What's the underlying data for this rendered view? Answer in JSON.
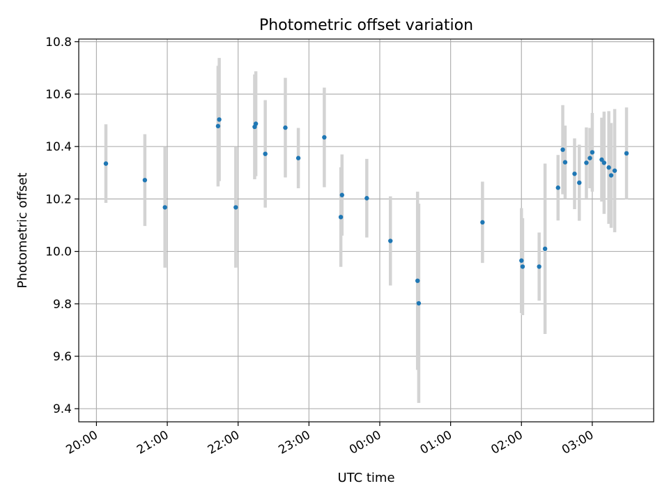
{
  "chart_data": {
    "type": "scatter",
    "title": "Photometric offset variation",
    "xlabel": "UTC time",
    "ylabel": "Photometric offset",
    "x_axis_type": "time",
    "x_reference_date": "2000-01-01",
    "xlim": [
      "2000-01-01T19:45:00",
      "2000-01-02T03:52:00"
    ],
    "ylim": [
      9.35,
      10.81
    ],
    "x_ticks": [
      {
        "label": "20:00",
        "value": "2000-01-01T20:00:00"
      },
      {
        "label": "21:00",
        "value": "2000-01-01T21:00:00"
      },
      {
        "label": "22:00",
        "value": "2000-01-01T22:00:00"
      },
      {
        "label": "23:00",
        "value": "2000-01-01T23:00:00"
      },
      {
        "label": "00:00",
        "value": "2000-01-02T00:00:00"
      },
      {
        "label": "01:00",
        "value": "2000-01-02T01:00:00"
      },
      {
        "label": "02:00",
        "value": "2000-01-02T02:00:00"
      },
      {
        "label": "03:00",
        "value": "2000-01-02T03:00:00"
      }
    ],
    "y_ticks": [
      9.4,
      9.6,
      9.8,
      10.0,
      10.2,
      10.4,
      10.6,
      10.8
    ],
    "y_tick_labels": [
      "9.4",
      "9.6",
      "9.8",
      "10.0",
      "10.2",
      "10.4",
      "10.6",
      "10.8"
    ],
    "grid": true,
    "colors": {
      "points": "#1f77b4",
      "errorbars": "#d3d3d3",
      "grid": "#b0b0b0"
    },
    "points": [
      {
        "x": "2000-01-01T20:08:00",
        "y": 10.335,
        "err": 0.15
      },
      {
        "x": "2000-01-01T20:41:00",
        "y": 10.272,
        "err": 0.175
      },
      {
        "x": "2000-01-01T20:58:00",
        "y": 10.168,
        "err": 0.23
      },
      {
        "x": "2000-01-01T21:58:00",
        "y": 10.168,
        "err": 0.23
      },
      {
        "x": "2000-01-01T21:43:00",
        "y": 10.478,
        "err": 0.23
      },
      {
        "x": "2000-01-01T21:44:00",
        "y": 10.503,
        "err": 0.235
      },
      {
        "x": "2000-01-01T22:14:00",
        "y": 10.475,
        "err": 0.2
      },
      {
        "x": "2000-01-01T22:15:00",
        "y": 10.487,
        "err": 0.2
      },
      {
        "x": "2000-01-01T22:23:00",
        "y": 10.372,
        "err": 0.205
      },
      {
        "x": "2000-01-01T22:40:00",
        "y": 10.472,
        "err": 0.19
      },
      {
        "x": "2000-01-01T22:51:00",
        "y": 10.356,
        "err": 0.115
      },
      {
        "x": "2000-01-01T23:13:00",
        "y": 10.435,
        "err": 0.19
      },
      {
        "x": "2000-01-01T23:27:00",
        "y": 10.131,
        "err": 0.19
      },
      {
        "x": "2000-01-01T23:28:00",
        "y": 10.215,
        "err": 0.155
      },
      {
        "x": "2000-01-01T23:49:00",
        "y": 10.203,
        "err": 0.15
      },
      {
        "x": "2000-01-02T00:09:00",
        "y": 10.04,
        "err": 0.17
      },
      {
        "x": "2000-01-02T00:32:00",
        "y": 9.888,
        "err": 0.34
      },
      {
        "x": "2000-01-02T00:33:00",
        "y": 9.802,
        "err": 0.38
      },
      {
        "x": "2000-01-02T01:27:00",
        "y": 10.111,
        "err": 0.155
      },
      {
        "x": "2000-01-02T02:00:00",
        "y": 9.965,
        "err": 0.2
      },
      {
        "x": "2000-01-02T02:01:00",
        "y": 9.942,
        "err": 0.185
      },
      {
        "x": "2000-01-02T02:15:00",
        "y": 9.942,
        "err": 0.13
      },
      {
        "x": "2000-01-02T02:20:00",
        "y": 10.01,
        "err": 0.325
      },
      {
        "x": "2000-01-02T02:31:00",
        "y": 10.243,
        "err": 0.125
      },
      {
        "x": "2000-01-02T02:35:00",
        "y": 10.388,
        "err": 0.17
      },
      {
        "x": "2000-01-02T02:37:00",
        "y": 10.34,
        "err": 0.14
      },
      {
        "x": "2000-01-02T02:45:00",
        "y": 10.296,
        "err": 0.135
      },
      {
        "x": "2000-01-02T02:49:00",
        "y": 10.262,
        "err": 0.145
      },
      {
        "x": "2000-01-02T02:55:00",
        "y": 10.338,
        "err": 0.135
      },
      {
        "x": "2000-01-02T02:58:00",
        "y": 10.356,
        "err": 0.115
      },
      {
        "x": "2000-01-02T03:00:00",
        "y": 10.378,
        "err": 0.15
      },
      {
        "x": "2000-01-02T03:08:00",
        "y": 10.35,
        "err": 0.16
      },
      {
        "x": "2000-01-02T03:10:00",
        "y": 10.338,
        "err": 0.195
      },
      {
        "x": "2000-01-02T03:14:00",
        "y": 10.32,
        "err": 0.215
      },
      {
        "x": "2000-01-02T03:16:00",
        "y": 10.29,
        "err": 0.2
      },
      {
        "x": "2000-01-02T03:19:00",
        "y": 10.308,
        "err": 0.235
      },
      {
        "x": "2000-01-02T03:29:00",
        "y": 10.374,
        "err": 0.175
      }
    ]
  }
}
